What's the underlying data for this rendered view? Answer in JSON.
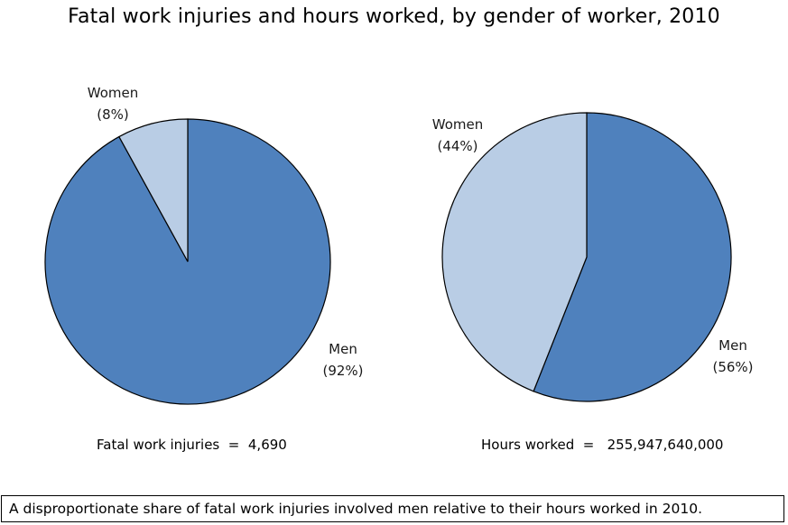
{
  "colors": {
    "men": "#4f81bd",
    "women": "#b9cde5",
    "outline": "#000000"
  },
  "chart_data": [
    {
      "type": "pie",
      "title": "Fatal work injuries and hours worked, by gender of worker, 2010",
      "slices": [
        {
          "name": "Men",
          "percent_label": "(92%)",
          "value": 92
        },
        {
          "name": "Women",
          "percent_label": "(8%)",
          "value": 8
        }
      ],
      "caption": "Fatal work injuries  =  4,690"
    },
    {
      "type": "pie",
      "slices": [
        {
          "name": "Men",
          "percent_label": "(56%)",
          "value": 56
        },
        {
          "name": "Women",
          "percent_label": "(44%)",
          "value": 44
        }
      ],
      "caption": "Hours worked  =   255,947,640,000"
    }
  ],
  "footnote": "A disproportionate share of fatal work injuries involved men relative to their hours worked in 2010."
}
